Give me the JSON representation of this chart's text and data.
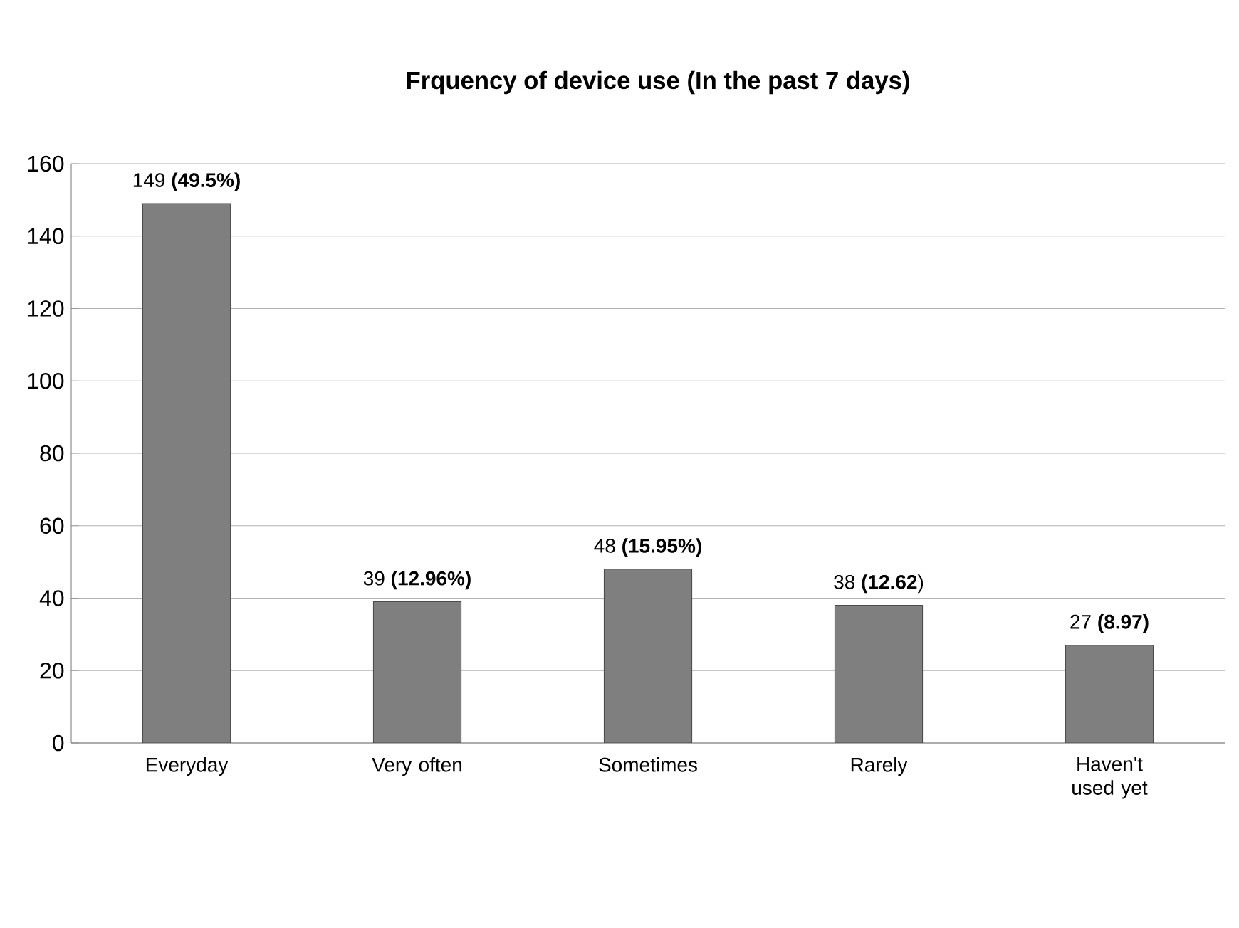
{
  "chart_data": {
    "type": "bar",
    "title": "Frquency of device use (In the past 7 days)",
    "categories": [
      "Everyday",
      "Very often",
      "Sometimes",
      "Rarely",
      "Haven't used yet"
    ],
    "values": [
      149,
      39,
      48,
      38,
      27
    ],
    "value_labels": [
      "149 **(49.5%)**",
      "39 **(12.96%)**",
      "48 **(15.95%)**",
      "38 **(12.62**)",
      "27 **(8.97)**"
    ],
    "color": "#7f7f7f",
    "ylim": [
      0,
      160
    ],
    "yticks": [
      0,
      20,
      40,
      60,
      80,
      100,
      120,
      140,
      160
    ],
    "grid": "y"
  }
}
